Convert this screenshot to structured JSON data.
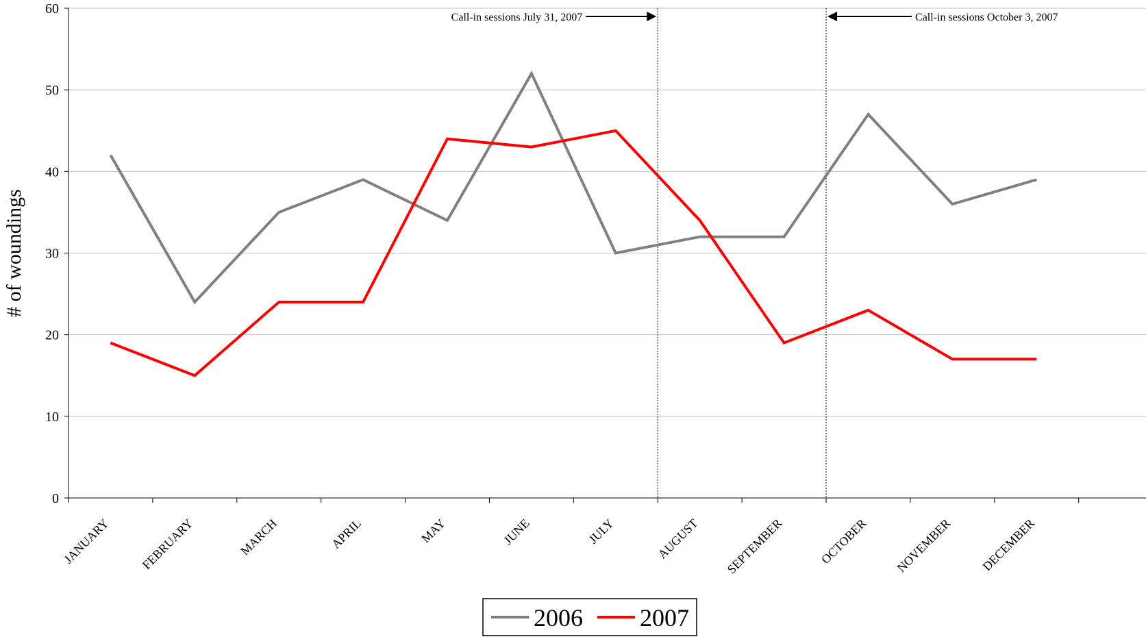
{
  "chart_data": {
    "type": "line",
    "ylabel": "# of woundings",
    "ylim": [
      0,
      60
    ],
    "yticks": [
      0,
      10,
      20,
      30,
      40,
      50,
      60
    ],
    "gridlines": true,
    "categories": [
      "JANUARY",
      "FEBRUARY",
      "MARCH",
      "APRIL",
      "MAY",
      "JUNE",
      "JULY",
      "AUGUST",
      "SEPTEMBER",
      "OCTOBER",
      "NOVEMBER",
      "DECEMBER"
    ],
    "series": [
      {
        "name": "2006",
        "color": "#808080",
        "values": [
          42,
          24,
          35,
          39,
          34,
          52,
          30,
          32,
          32,
          47,
          36,
          39
        ]
      },
      {
        "name": "2007",
        "color": "#ff0000",
        "values": [
          19,
          15,
          24,
          24,
          44,
          43,
          45,
          34,
          19,
          23,
          17,
          17
        ]
      }
    ],
    "annotations": [
      {
        "text": "Call-in sessions July 31, 2007",
        "at_category_boundary": 7,
        "arrow": "right"
      },
      {
        "text": "Call-in sessions October 3, 2007",
        "at_category_boundary": 9,
        "arrow": "left"
      }
    ],
    "legend_placement": "bottom-center"
  }
}
